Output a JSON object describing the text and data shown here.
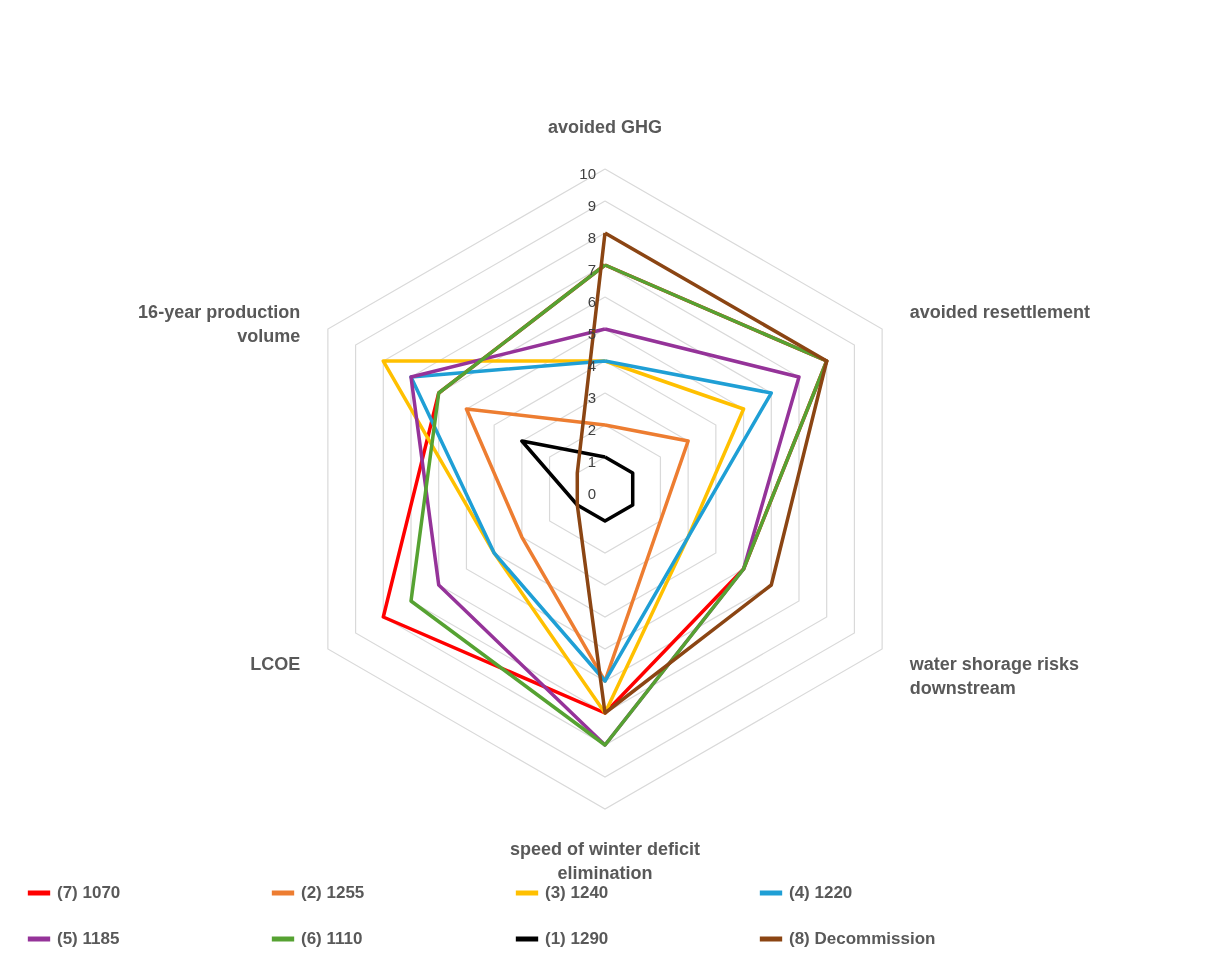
{
  "chart_data": {
    "type": "radar",
    "categories": [
      "avoided GHG",
      "avoided resettlement",
      "water shorage risks downstream",
      "speed of winter deficit elimination",
      "LCOE",
      "16-year production volume"
    ],
    "series": [
      {
        "name": "(7) 1070",
        "color": "#ff0000",
        "values": [
          7,
          8,
          5,
          7,
          8,
          6
        ]
      },
      {
        "name": "(2) 1255",
        "color": "#ed7d31",
        "values": [
          2,
          3,
          2,
          6,
          3,
          5
        ]
      },
      {
        "name": "(3) 1240",
        "color": "#ffc000",
        "values": [
          4,
          5,
          3,
          7,
          4,
          8
        ]
      },
      {
        "name": "(4) 1220",
        "color": "#1f9fd5",
        "values": [
          4,
          6,
          3,
          6,
          4,
          7
        ]
      },
      {
        "name": "(5) 1185",
        "color": "#953399",
        "values": [
          5,
          7,
          5,
          8,
          6,
          7
        ]
      },
      {
        "name": "(6) 1110",
        "color": "#56a232",
        "values": [
          7,
          8,
          5,
          8,
          7,
          6
        ]
      },
      {
        "name": "(1) 1290",
        "color": "#000000",
        "values": [
          1,
          1,
          1,
          1,
          1,
          3
        ]
      },
      {
        "name": "(8) Decommission",
        "color": "#8b4513",
        "values": [
          8,
          8,
          6,
          7,
          1,
          1
        ]
      }
    ],
    "ylim": [
      0,
      10
    ],
    "yticks": [
      0,
      1,
      2,
      3,
      4,
      5,
      6,
      7,
      8,
      9,
      10
    ],
    "grid": true,
    "legend": "bottom"
  }
}
